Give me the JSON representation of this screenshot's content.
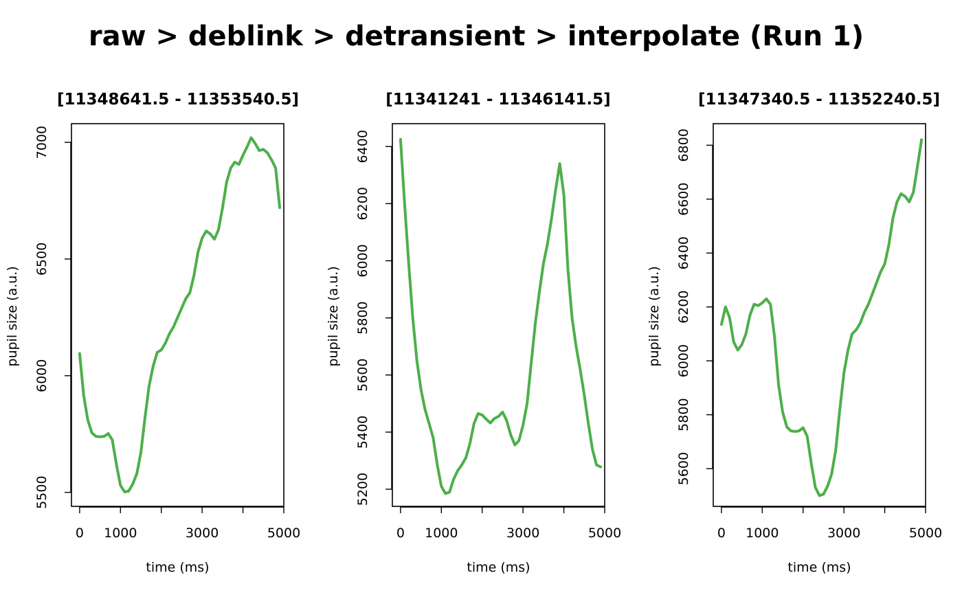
{
  "title": "raw > deblink > detransient > interpolate (Run 1)",
  "chart_data": [
    {
      "type": "line",
      "title": "[11348641.5 - 11353540.5]",
      "xlabel": "time (ms)",
      "ylabel": "pupil size (a.u.)",
      "xlim": [
        -200,
        5000
      ],
      "ylim": [
        5440,
        7080
      ],
      "x_ticks": [
        0,
        1000,
        2000,
        3000,
        4000,
        5000
      ],
      "x_tick_labels": [
        "0",
        "1000",
        "",
        "3000",
        "",
        "5000"
      ],
      "y_ticks": [
        5500,
        6000,
        6500,
        7000
      ],
      "y_tick_labels": [
        "5500",
        "6000",
        "6500",
        "7000"
      ],
      "color": "#4DAF4A",
      "series": [
        {
          "x": [
            0,
            100,
            200,
            300,
            400,
            500,
            600,
            700,
            800,
            900,
            1000,
            1100,
            1200,
            1300,
            1400,
            1500,
            1600,
            1700,
            1800,
            1900,
            2000,
            2100,
            2200,
            2300,
            2400,
            2500,
            2600,
            2700,
            2800,
            2900,
            3000,
            3100,
            3200,
            3300,
            3400,
            3500,
            3600,
            3700,
            3800,
            3900,
            4000,
            4100,
            4200,
            4300,
            4400,
            4500,
            4600,
            4700,
            4800,
            4900
          ],
          "y": [
            6095,
            5915,
            5810,
            5755,
            5740,
            5738,
            5740,
            5752,
            5725,
            5620,
            5530,
            5502,
            5505,
            5535,
            5580,
            5670,
            5820,
            5955,
            6040,
            6100,
            6110,
            6140,
            6180,
            6210,
            6250,
            6290,
            6330,
            6355,
            6430,
            6530,
            6590,
            6620,
            6608,
            6585,
            6625,
            6720,
            6830,
            6890,
            6915,
            6905,
            6945,
            6980,
            7020,
            6995,
            6965,
            6970,
            6955,
            6925,
            6890,
            6720
          ]
        }
      ]
    },
    {
      "type": "line",
      "title": "[11341241 - 11346141.5]",
      "xlabel": "time (ms)",
      "ylabel": "pupil size (a.u.)",
      "xlim": [
        -200,
        5000
      ],
      "ylim": [
        5140,
        6480
      ],
      "x_ticks": [
        0,
        1000,
        2000,
        3000,
        4000,
        5000
      ],
      "x_tick_labels": [
        "0",
        "1000",
        "",
        "3000",
        "",
        "5000"
      ],
      "y_ticks": [
        5200,
        5400,
        5600,
        5800,
        6000,
        6200,
        6400
      ],
      "y_tick_labels": [
        "5200",
        "5400",
        "5600",
        "5800",
        "6000",
        "6200",
        "6400"
      ],
      "color": "#4DAF4A",
      "series": [
        {
          "x": [
            0,
            100,
            200,
            300,
            400,
            500,
            600,
            700,
            800,
            900,
            1000,
            1100,
            1200,
            1300,
            1400,
            1500,
            1600,
            1700,
            1800,
            1900,
            2000,
            2100,
            2200,
            2300,
            2400,
            2500,
            2600,
            2700,
            2800,
            2900,
            3000,
            3100,
            3200,
            3300,
            3400,
            3500,
            3600,
            3700,
            3800,
            3900,
            4000,
            4100,
            4200,
            4300,
            4400,
            4500,
            4600,
            4700,
            4800,
            4900
          ],
          "y": [
            6425,
            6200,
            5990,
            5800,
            5650,
            5550,
            5480,
            5430,
            5380,
            5285,
            5210,
            5185,
            5190,
            5235,
            5265,
            5285,
            5310,
            5360,
            5430,
            5465,
            5460,
            5445,
            5432,
            5448,
            5455,
            5470,
            5440,
            5390,
            5355,
            5370,
            5425,
            5500,
            5640,
            5780,
            5890,
            5990,
            6060,
            6150,
            6250,
            6340,
            6230,
            5970,
            5800,
            5700,
            5620,
            5530,
            5430,
            5340,
            5285,
            5278
          ]
        }
      ]
    },
    {
      "type": "line",
      "title": "[11347340.5 - 11352240.5]",
      "xlabel": "time (ms)",
      "ylabel": "pupil size (a.u.)",
      "xlim": [
        -200,
        5000
      ],
      "ylim": [
        5460,
        6880
      ],
      "x_ticks": [
        0,
        1000,
        2000,
        3000,
        4000,
        5000
      ],
      "x_tick_labels": [
        "0",
        "1000",
        "",
        "3000",
        "",
        "5000"
      ],
      "y_ticks": [
        5600,
        5800,
        6000,
        6200,
        6400,
        6600,
        6800
      ],
      "y_tick_labels": [
        "5600",
        "5800",
        "6000",
        "6200",
        "6400",
        "6600",
        "6800"
      ],
      "color": "#4DAF4A",
      "series": [
        {
          "x": [
            0,
            100,
            200,
            300,
            400,
            500,
            600,
            700,
            800,
            900,
            1000,
            1100,
            1200,
            1300,
            1400,
            1500,
            1600,
            1700,
            1800,
            1900,
            2000,
            2100,
            2200,
            2300,
            2400,
            2500,
            2600,
            2700,
            2800,
            2900,
            3000,
            3100,
            3200,
            3300,
            3400,
            3500,
            3600,
            3700,
            3800,
            3900,
            4000,
            4100,
            4200,
            4300,
            4400,
            4500,
            4600,
            4700,
            4800,
            4900
          ],
          "y": [
            6135,
            6200,
            6160,
            6070,
            6040,
            6060,
            6100,
            6170,
            6210,
            6205,
            6215,
            6230,
            6210,
            6090,
            5910,
            5810,
            5755,
            5740,
            5738,
            5740,
            5752,
            5720,
            5620,
            5530,
            5500,
            5505,
            5535,
            5580,
            5670,
            5820,
            5955,
            6040,
            6100,
            6115,
            6140,
            6180,
            6210,
            6250,
            6290,
            6330,
            6360,
            6430,
            6530,
            6590,
            6620,
            6610,
            6590,
            6625,
            6720,
            6820
          ]
        }
      ]
    }
  ]
}
